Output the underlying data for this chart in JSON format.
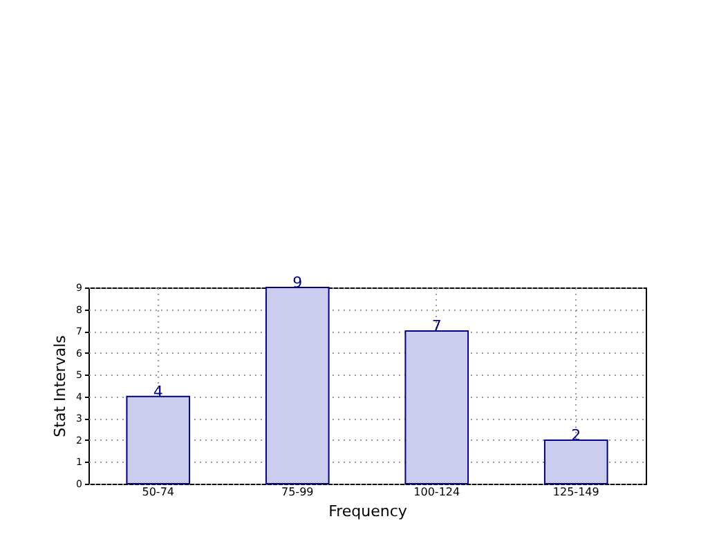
{
  "chart_data": {
    "type": "bar",
    "xlabel": "Frequency",
    "ylabel": "Stat Intervals",
    "categories": [
      "50-74",
      "75-99",
      "100-124",
      "125-149"
    ],
    "values": [
      4,
      9,
      7,
      2
    ],
    "color": "#ccccee",
    "ylim": [
      0,
      9
    ],
    "yticks": [
      0,
      1,
      2,
      3,
      4,
      5,
      6,
      7,
      8,
      9
    ],
    "grid": true,
    "data_labels": true
  }
}
